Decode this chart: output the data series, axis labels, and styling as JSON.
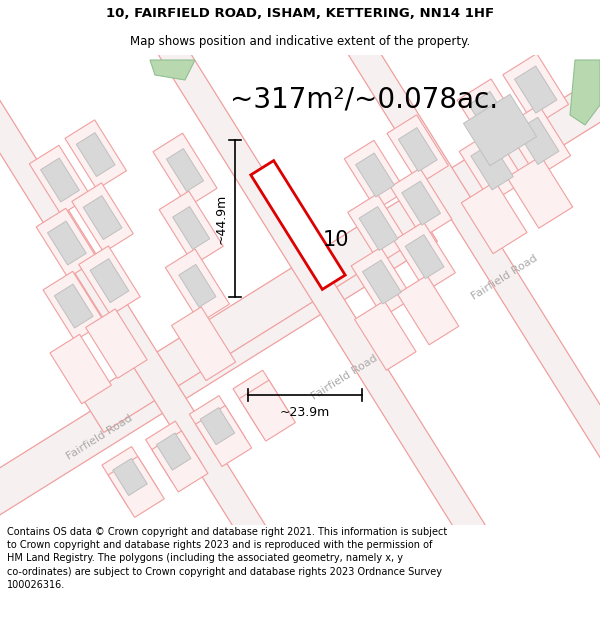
{
  "title_line1": "10, FAIRFIELD ROAD, ISHAM, KETTERING, NN14 1HF",
  "title_line2": "Map shows position and indicative extent of the property.",
  "area_text": "~317m²/~0.078ac.",
  "label_number": "10",
  "dim_height": "~44.9m",
  "dim_width": "~23.9m",
  "road_label_lower": "Fairfield Road",
  "road_label_mid": "Fairfield Road",
  "road_label_upper": "Fairfield Road",
  "footer_text": "Contains OS data © Crown copyright and database right 2021. This information is subject\nto Crown copyright and database rights 2023 and is reproduced with the permission of\nHM Land Registry. The polygons (including the associated geometry, namely x, y\nco-ordinates) are subject to Crown copyright and database rights 2023 Ordnance Survey\n100026316.",
  "bg_color": "#ffffff",
  "map_bg": "#faf5f5",
  "plot_outline_color": "#dd0000",
  "road_line_color": "#f0a0a0",
  "parcel_line_color": "#f0a0a0",
  "building_fill": "#d8d8d8",
  "building_outline": "#c0c0c0",
  "green_color": "#b8d8b0",
  "road_band_color": "#f7efef",
  "title_fontsize": 9.5,
  "subtitle_fontsize": 8.5,
  "area_fontsize": 20,
  "label_fontsize": 15,
  "road_label_fontsize": 8,
  "footer_fontsize": 7.0,
  "road_ang_deg": 32
}
